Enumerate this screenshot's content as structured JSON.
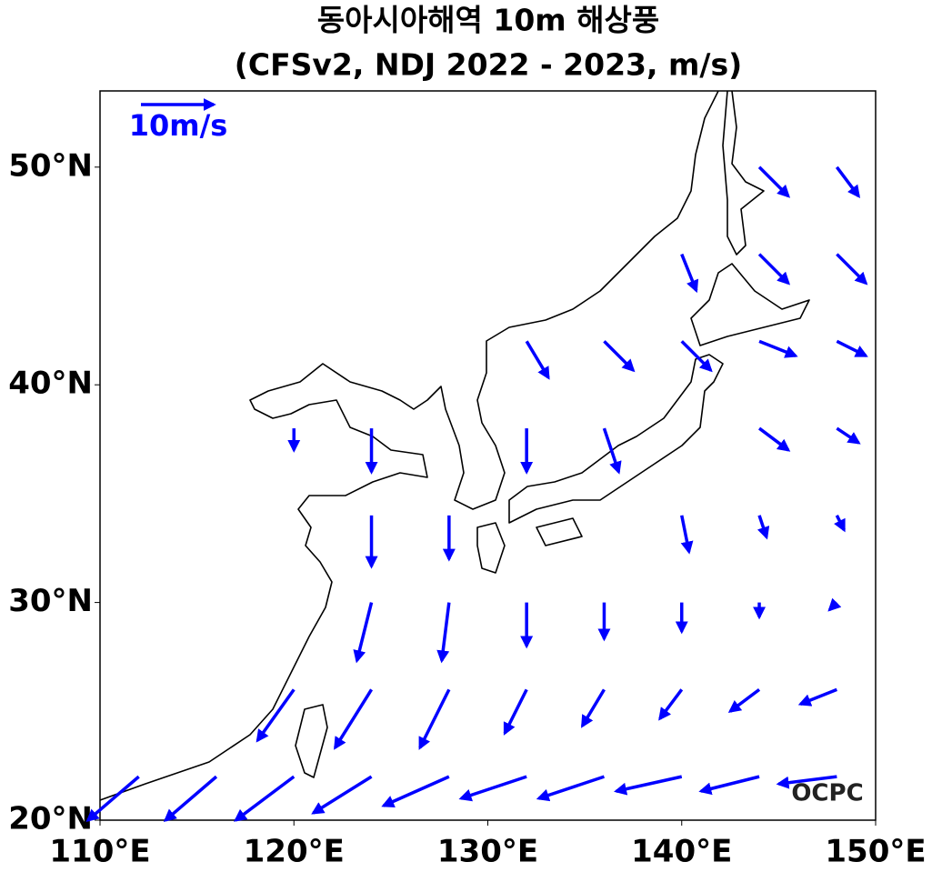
{
  "chart_data": {
    "type": "quiver",
    "title": "동아시아해역 10m 해상풍",
    "subtitle": "(CFSv2, NDJ 2022 - 2023, m/s)",
    "color": "#0000ff",
    "xlim": [
      110,
      150
    ],
    "ylim": [
      20,
      53.5
    ],
    "xticks": [
      {
        "value": 110,
        "label": "110°E"
      },
      {
        "value": 120,
        "label": "120°E"
      },
      {
        "value": 130,
        "label": "130°E"
      },
      {
        "value": 140,
        "label": "140°E"
      },
      {
        "value": 150,
        "label": "150°E"
      }
    ],
    "yticks": [
      {
        "value": 20,
        "label": "20°N"
      },
      {
        "value": 30,
        "label": "30°N"
      },
      {
        "value": 40,
        "label": "40°N"
      },
      {
        "value": 50,
        "label": "50°N"
      }
    ],
    "quiver_key": {
      "value": 10,
      "label": "10m/s"
    },
    "logo": "OCPC",
    "lons": [
      112,
      116,
      120,
      124,
      128,
      132,
      136,
      140,
      144,
      148
    ],
    "lats": [
      22,
      26,
      30,
      34,
      38,
      42,
      46,
      50
    ],
    "u": [
      [
        -7,
        -7,
        -8,
        -8,
        -9,
        -9,
        -9,
        -9,
        -8,
        -8
      ],
      [
        null,
        null,
        -5,
        -5,
        -4,
        -3,
        -3,
        -3,
        -4,
        -5
      ],
      [
        null,
        null,
        null,
        -2,
        -1,
        0,
        0,
        0,
        0,
        -1
      ],
      [
        null,
        null,
        null,
        0,
        0,
        null,
        null,
        1,
        1,
        1
      ],
      [
        null,
        null,
        0,
        0,
        null,
        0,
        2,
        null,
        4,
        3
      ],
      [
        null,
        null,
        null,
        null,
        null,
        3,
        4,
        4,
        5,
        4
      ],
      [
        null,
        null,
        null,
        null,
        null,
        null,
        null,
        2,
        4,
        4
      ],
      [
        null,
        null,
        null,
        null,
        null,
        null,
        null,
        null,
        4,
        3
      ]
    ],
    "v": [
      [
        -6,
        -6,
        -6,
        -5,
        -4,
        -3,
        -3,
        -2,
        -2,
        -1
      ],
      [
        null,
        null,
        -7,
        -8,
        -8,
        -6,
        -5,
        -4,
        -3,
        -2
      ],
      [
        null,
        null,
        null,
        -8,
        -8,
        -6,
        -5,
        -4,
        -2,
        -1
      ],
      [
        null,
        null,
        null,
        -7,
        -6,
        null,
        null,
        -5,
        -3,
        -2
      ],
      [
        null,
        null,
        -3,
        -6,
        null,
        -6,
        -6,
        null,
        -3,
        -2
      ],
      [
        null,
        null,
        null,
        null,
        null,
        -5,
        -4,
        -4,
        -2,
        -2
      ],
      [
        null,
        null,
        null,
        null,
        null,
        null,
        null,
        -5,
        -4,
        -4
      ],
      [
        null,
        null,
        null,
        null,
        null,
        null,
        null,
        null,
        -4,
        -4
      ]
    ]
  }
}
